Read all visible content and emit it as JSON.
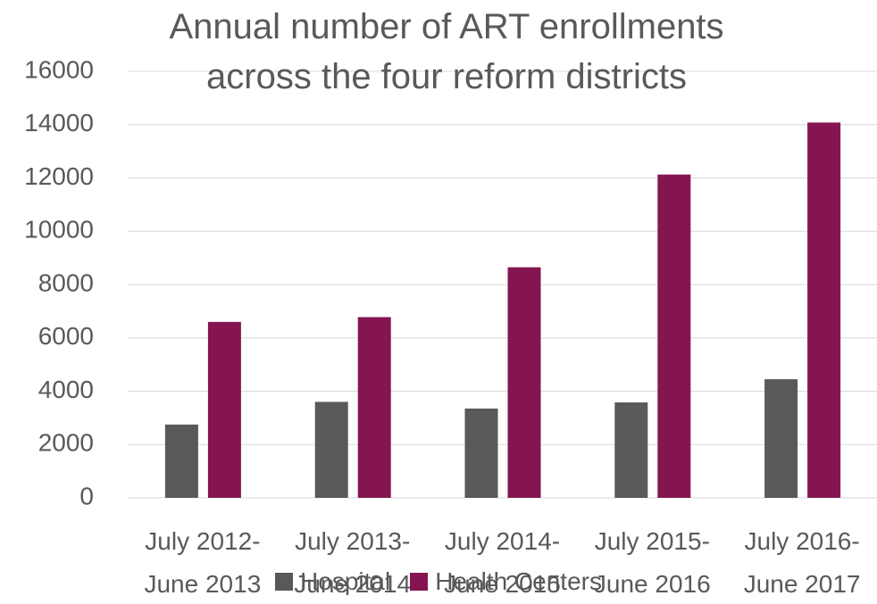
{
  "chart_data": {
    "type": "bar",
    "title": "Annual number of ART enrollments across the four reform districts",
    "categories": [
      "July 2012- June 2013",
      "July 2013- June 2014",
      "July 2014- June 2015",
      "July 2015- June 2016",
      "July 2016- June 2017"
    ],
    "series": [
      {
        "name": "Hospital",
        "color": "#595959",
        "values": [
          2750,
          3600,
          3350,
          3580,
          4450
        ]
      },
      {
        "name": "Health Centers",
        "color": "#841550",
        "values": [
          6600,
          6780,
          8650,
          12130,
          14080
        ]
      }
    ],
    "ylim": [
      0,
      16000
    ],
    "yticks": [
      0,
      2000,
      4000,
      6000,
      8000,
      10000,
      12000,
      14000,
      16000
    ],
    "grid": true,
    "legend": "bottom"
  }
}
